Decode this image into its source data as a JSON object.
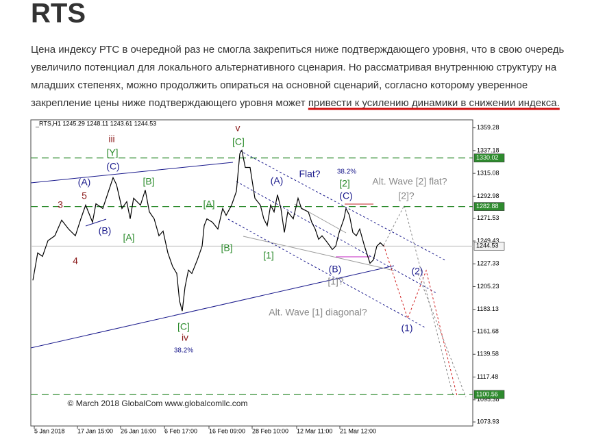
{
  "title": "RTS",
  "paragraph": {
    "lines": [
      "Цена индексу РТС в очередной раз не смогла закрепиться ниже подтверждающего уровня, что в свою очередь",
      "увеличило потенциал для локального альтернативного сценария. Но рассматривая внутреннюю структуру на",
      "младших степенях, можно продолжить опираться на основной сценарий, согласно которому уверенное",
      "закрепление цены ниже подтверждающего уровня может "
    ],
    "highlight": "привести к усилению динамики в снижении индекса."
  },
  "chart_data": {
    "type": "line",
    "header": "_RTS,H1  1245.29 1248.11 1243.61 1244.53",
    "color": "#000000",
    "x": [
      3,
      10,
      17,
      25,
      35,
      45,
      55,
      65,
      73,
      80,
      90,
      95,
      105,
      115,
      120,
      125,
      133,
      140,
      145,
      150,
      160,
      167,
      173,
      180,
      187,
      193,
      200,
      207,
      213,
      217,
      221,
      225,
      230,
      235,
      243,
      250,
      253,
      257,
      265,
      273,
      280,
      285,
      293,
      300,
      305,
      308,
      313,
      320,
      327,
      335,
      340,
      345,
      350,
      355,
      360,
      365,
      370,
      375,
      383,
      390,
      395,
      405,
      410,
      415,
      420,
      425,
      433,
      440,
      445,
      450,
      457,
      460,
      465,
      470,
      475,
      480,
      487,
      495,
      500,
      505,
      510,
      515
    ],
    "values": [
      1211.3,
      1237.9,
      1234.5,
      1249.8,
      1254.5,
      1269.7,
      1261.1,
      1254.5,
      1271.0,
      1284.3,
      1267.7,
      1285.6,
      1281.0,
      1300.9,
      1310.9,
      1304.2,
      1281.0,
      1287.6,
      1271.0,
      1291.0,
      1284.3,
      1298.9,
      1277.7,
      1271.0,
      1254.5,
      1259.1,
      1237.9,
      1224.6,
      1218.0,
      1191.4,
      1181.5,
      1204.7,
      1221.3,
      1218.0,
      1231.2,
      1244.5,
      1264.4,
      1271.0,
      1267.7,
      1261.1,
      1281.0,
      1274.4,
      1284.3,
      1297.6,
      1334.1,
      1337.4,
      1320.8,
      1320.8,
      1291.0,
      1284.3,
      1271.0,
      1264.4,
      1284.3,
      1277.7,
      1294.3,
      1281.0,
      1257.8,
      1277.7,
      1271.0,
      1291.0,
      1281.0,
      1277.7,
      1267.7,
      1261.1,
      1251.1,
      1254.5,
      1247.8,
      1241.2,
      1244.5,
      1257.8,
      1271.0,
      1281.0,
      1274.4,
      1257.8,
      1254.5,
      1261.1,
      1244.5,
      1227.9,
      1231.2,
      1244.5,
      1247.8,
      1244.53
    ],
    "xlim": [
      0,
      645
    ],
    "ylim": [
      1070,
      1367
    ],
    "xticks": [
      {
        "value": 5,
        "label": "5 Jan 2018"
      },
      {
        "value": 68,
        "label": "17 Jan 15:00"
      },
      {
        "value": 131,
        "label": "26 Jan 16:00"
      },
      {
        "value": 195,
        "label": "6 Feb 17:00"
      },
      {
        "value": 260,
        "label": "16 Feb 09:00"
      },
      {
        "value": 323,
        "label": "28 Feb 10:00"
      },
      {
        "value": 388,
        "label": "12 Mar 11:00"
      },
      {
        "value": 451,
        "label": "21 Mar 12:00"
      }
    ],
    "yticks": [
      1359.28,
      1337.18,
      1315.08,
      1292.98,
      1271.53,
      1249.43,
      1227.33,
      1205.23,
      1183.13,
      1161.68,
      1139.58,
      1117.48,
      1095.38,
      1073.93
    ],
    "levels": [
      1330.02,
      1282.88,
      1100.56
    ],
    "level_color": "#2e8b2e",
    "last_price": 1244.53,
    "annotations": [
      "v",
      "[C]",
      "iii",
      "[Y]",
      "(C)",
      "(A)",
      "5",
      "3",
      "(B)",
      "[A]",
      "[B]",
      "4",
      "[A]",
      "[B]",
      "(A)",
      "Flat?",
      "38.2%",
      "[2]",
      "(C)",
      "Alt. Wave [2] flat?",
      "[2]?",
      "[1]",
      "(B)",
      "[1]?",
      "(2)",
      "Alt. Wave [1] diagonal?",
      "(1)",
      "[C]",
      "iv",
      "38.2%",
      "© March 2018 GlobalCom www.globalcomllc.com"
    ]
  }
}
